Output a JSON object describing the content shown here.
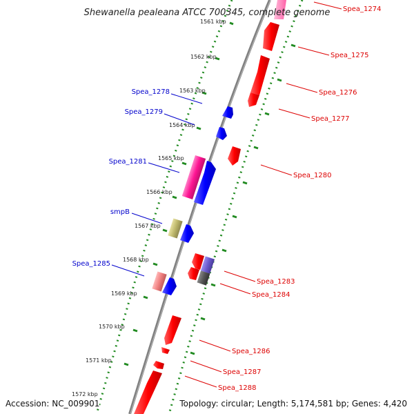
{
  "title": "Shewanella pealeana ATCC 700345, complete genome",
  "footer": {
    "accession": "Accession: NC_009901",
    "stats": "Topology: circular; Length: 5,174,581 bp; Genes: 4,420"
  },
  "colors": {
    "backbone": "#7a7a7a",
    "tick": "#228b22",
    "forward_label": "#0000cc",
    "reverse_label": "#dd0000",
    "cds_forward": "#0000ff",
    "cds_reverse": "#ff0000",
    "rna_pink": "#ff1493",
    "rna_olive": "#bdb76b",
    "rna_salmon": "#f08080",
    "rna_purple": "#6a5acd",
    "rna_gray": "#555555"
  },
  "ticks": [
    "1561 kbp",
    "1562 kbp",
    "1563 kbp",
    "1564 kbp",
    "1565 kbp",
    "1566 kbp",
    "1567 kbp",
    "1568 kbp",
    "1569 kbp",
    "1570 kbp",
    "1571 kbp",
    "1572 kbp"
  ],
  "labels": {
    "left": [
      "Spea_1278",
      "Spea_1279",
      "Spea_1281",
      "smpB",
      "Spea_1285"
    ],
    "right": [
      "Spea_1274",
      "Spea_1275",
      "Spea_1276",
      "Spea_1277",
      "Spea_1280",
      "Spea_1283",
      "Spea_1284",
      "Spea_1286",
      "Spea_1287",
      "Spea_1288"
    ]
  }
}
